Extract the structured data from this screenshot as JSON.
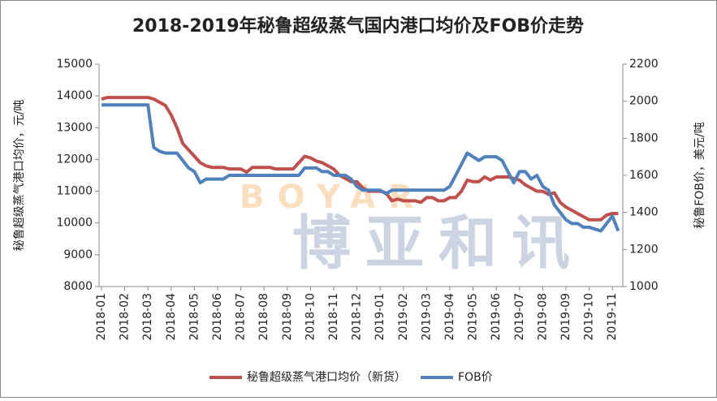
{
  "chart_data": {
    "type": "line",
    "title": "2018-2019年秘鲁超级蒸气国内港口均价及FOB价走势",
    "y_label": "秘鲁超级蒸气港口均价，元/吨",
    "y2_label": "秘鲁FOB价，美元/吨",
    "watermark": [
      "BOYAR",
      "博亚和讯"
    ],
    "categories": [
      "2018-01",
      null,
      null,
      null,
      "2018-02",
      null,
      null,
      null,
      "2018-03",
      null,
      null,
      null,
      "2018-04",
      null,
      null,
      null,
      "2018-05",
      null,
      null,
      null,
      "2018-06",
      null,
      null,
      null,
      "2018-07",
      null,
      null,
      null,
      "2018-08",
      null,
      null,
      null,
      "2018-09",
      null,
      null,
      null,
      "2018-10",
      null,
      null,
      null,
      "2018-11",
      null,
      null,
      null,
      "2018-12",
      null,
      null,
      null,
      "2019-01",
      null,
      null,
      null,
      "2019-02",
      null,
      null,
      null,
      "2019-03",
      null,
      null,
      null,
      "2019-04",
      null,
      null,
      null,
      "2019-05",
      null,
      null,
      null,
      "2019-06",
      null,
      null,
      null,
      "2019-07",
      null,
      null,
      null,
      "2019-08",
      null,
      null,
      null,
      "2019-09",
      null,
      null,
      null,
      "2019-10",
      null,
      null,
      null,
      "2019-11",
      null
    ],
    "series": [
      {
        "name": "秘鲁超级蒸气港口均价（新货）",
        "color": "#c0504d",
        "values": [
          13900,
          13950,
          13950,
          13950,
          13950,
          13950,
          13950,
          13950,
          13950,
          13900,
          13800,
          13700,
          13400,
          13000,
          12500,
          12300,
          12100,
          11900,
          11800,
          11750,
          11750,
          11750,
          11700,
          11700,
          11700,
          11600,
          11750,
          11750,
          11750,
          11750,
          11700,
          11700,
          11700,
          11700,
          11900,
          12100,
          12050,
          11950,
          11900,
          11800,
          11700,
          11500,
          11400,
          11300,
          11300,
          11100,
          11000,
          11000,
          11000,
          10950,
          10700,
          10750,
          10700,
          10700,
          10700,
          10650,
          10800,
          10800,
          10700,
          10700,
          10800,
          10800,
          11000,
          11350,
          11300,
          11300,
          11450,
          11350,
          11450,
          11450,
          11450,
          11400,
          11350,
          11200,
          11100,
          11000,
          11000,
          10900,
          10950,
          10650,
          10500,
          10400,
          10300,
          10200,
          10100,
          10100,
          10100,
          10250,
          10300,
          10300
        ]
      },
      {
        "name": "FOB价",
        "color": "#4f81bd",
        "axis": "y2",
        "values": [
          1980,
          1980,
          1980,
          1980,
          1980,
          1980,
          1980,
          1980,
          1980,
          1750,
          1730,
          1720,
          1720,
          1720,
          1680,
          1640,
          1620,
          1560,
          1580,
          1580,
          1580,
          1580,
          1600,
          1600,
          1600,
          1600,
          1600,
          1600,
          1600,
          1600,
          1600,
          1600,
          1600,
          1600,
          1600,
          1640,
          1640,
          1640,
          1620,
          1620,
          1600,
          1600,
          1600,
          1580,
          1540,
          1520,
          1520,
          1520,
          1520,
          1500,
          1520,
          1520,
          1520,
          1520,
          1520,
          1520,
          1520,
          1520,
          1520,
          1520,
          1540,
          1600,
          1660,
          1720,
          1700,
          1680,
          1700,
          1700,
          1700,
          1680,
          1620,
          1560,
          1620,
          1620,
          1580,
          1600,
          1540,
          1520,
          1440,
          1400,
          1360,
          1340,
          1340,
          1320,
          1320,
          1310,
          1300,
          1340,
          1380,
          1300
        ]
      }
    ],
    "ylim": [
      8000,
      15000
    ],
    "yticks": [
      8000,
      9000,
      10000,
      11000,
      12000,
      13000,
      14000,
      15000
    ],
    "y2lim": [
      1000,
      2200
    ],
    "y2ticks": [
      1000,
      1200,
      1400,
      1600,
      1800,
      2000,
      2200
    ],
    "grid": false,
    "legend": "bottom"
  }
}
